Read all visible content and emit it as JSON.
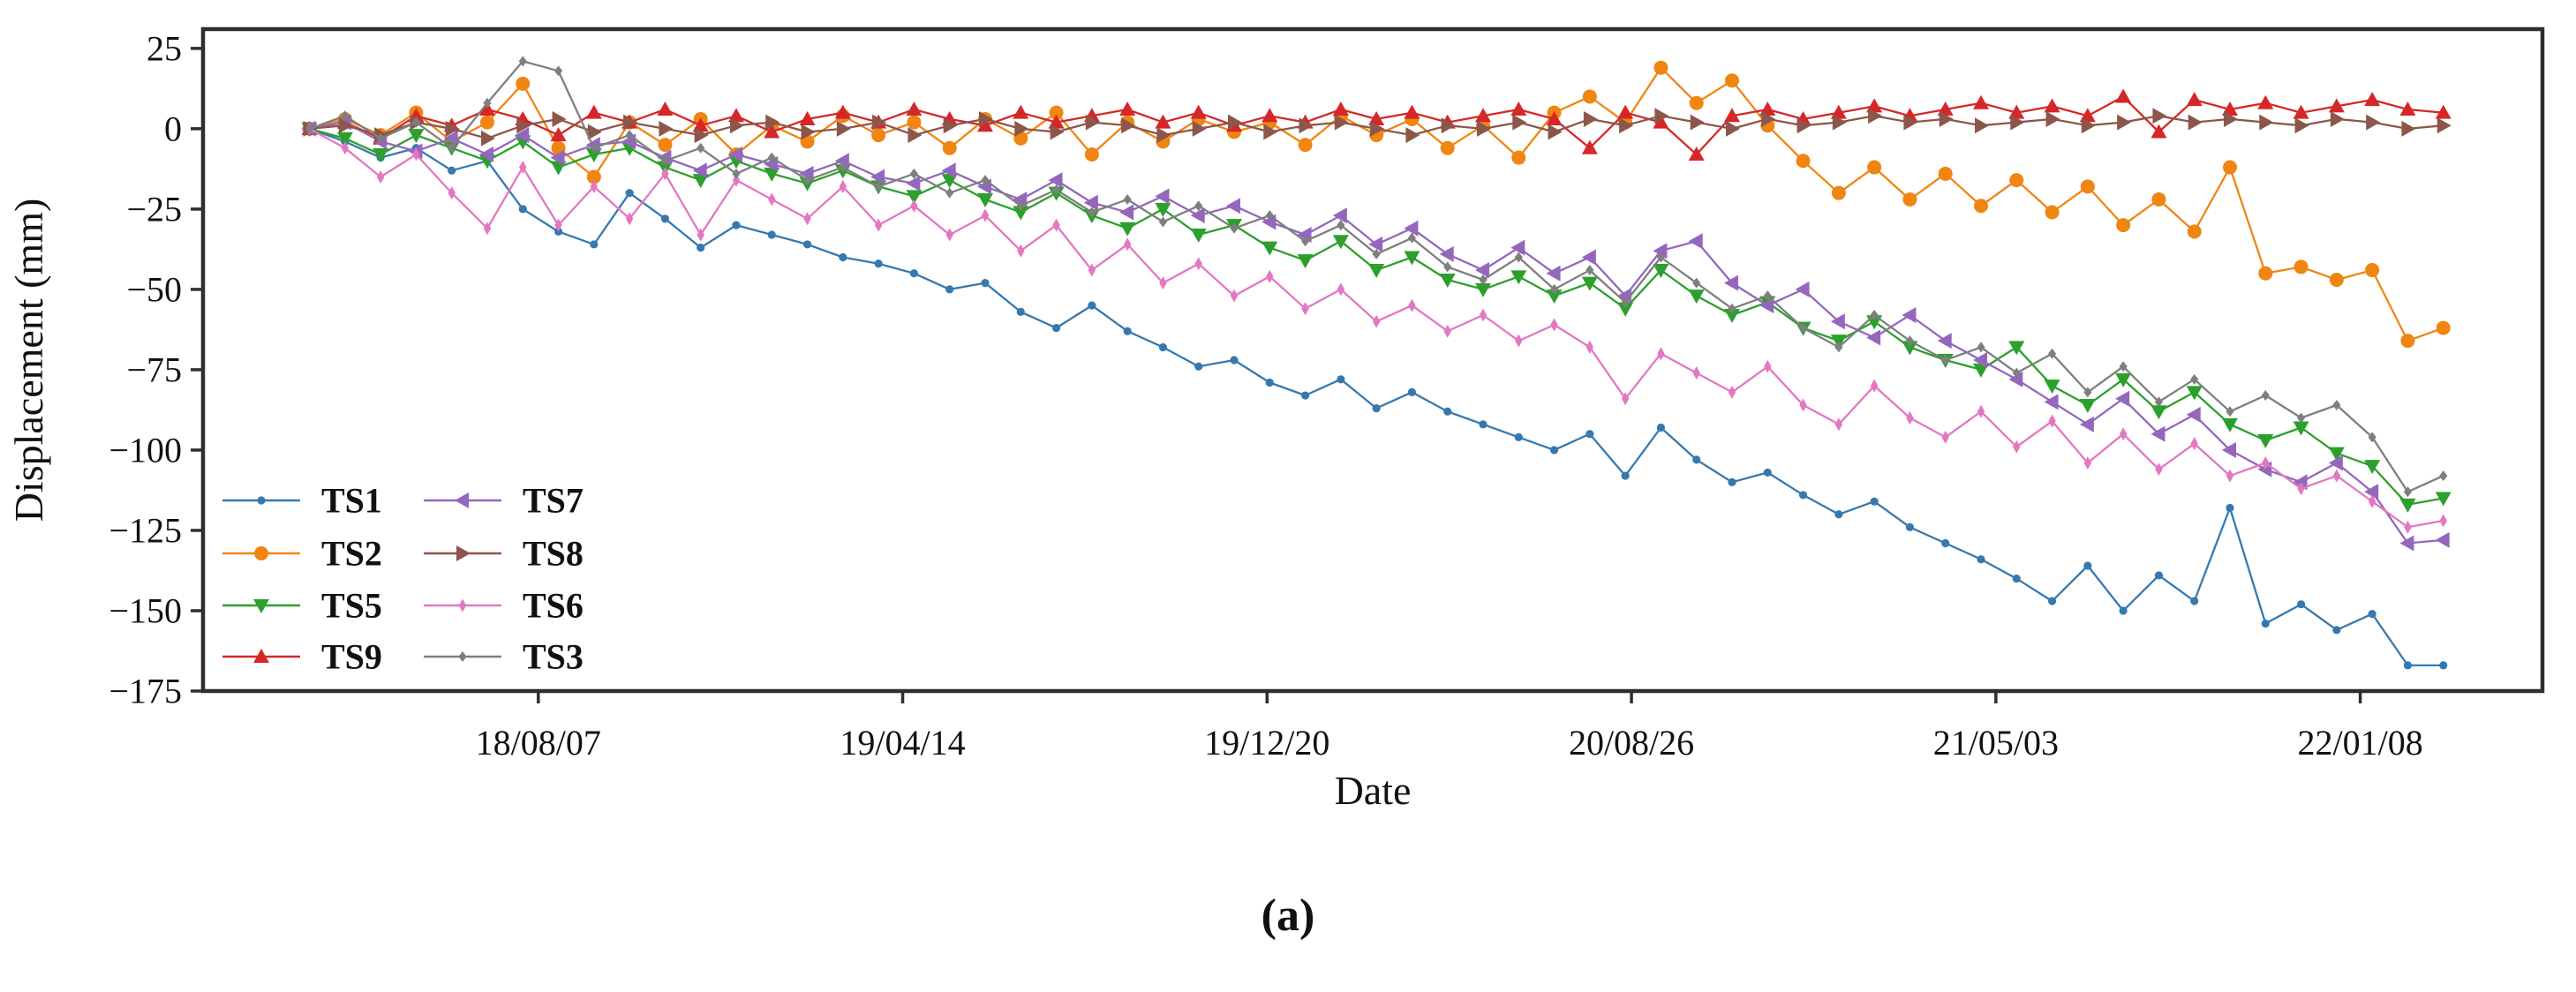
{
  "caption": "(a)",
  "chart_data": {
    "type": "line",
    "title": "",
    "xlabel": "Date",
    "ylabel": "Displacement (mm)",
    "legend_position": "lower-left-inside",
    "grid": false,
    "x_tick_labels": [
      "18/08/07",
      "19/04/14",
      "19/12/20",
      "20/08/26",
      "21/05/03",
      "22/01/08"
    ],
    "x_tick_days": [
      157,
      407,
      657,
      907,
      1157,
      1407
    ],
    "y_ticks": [
      25,
      0,
      -25,
      -50,
      -75,
      -100,
      -125,
      -150,
      -175
    ],
    "y_tick_labels": [
      "25",
      "0",
      "−25",
      "−50",
      "−75",
      "−100",
      "−125",
      "−150",
      "−175"
    ],
    "xlim_days": [
      -73,
      1532
    ],
    "ylim": [
      -175,
      31
    ],
    "sample_interval_days": 24.4,
    "x_start_day": 0,
    "axis_color": "#2e2e2e",
    "series": [
      {
        "name": "TS1",
        "color": "#3579b1",
        "marker": "circle-small",
        "values": [
          0,
          -4,
          -9,
          -6,
          -13,
          -10,
          -25,
          -32,
          -36,
          -20,
          -28,
          -37,
          -30,
          -33,
          -36,
          -40,
          -42,
          -45,
          -50,
          -48,
          -57,
          -62,
          -55,
          -63,
          -68,
          -74,
          -72,
          -79,
          -83,
          -78,
          -87,
          -82,
          -88,
          -92,
          -96,
          -100,
          -95,
          -108,
          -93,
          -103,
          -110,
          -107,
          -114,
          -120,
          -116,
          -124,
          -129,
          -134,
          -140,
          -147,
          -136,
          -150,
          -139,
          -147,
          -118,
          -154,
          -148,
          -156,
          -151,
          -167,
          -167
        ]
      },
      {
        "name": "TS2",
        "color": "#f08511",
        "marker": "circle",
        "values": [
          0,
          3,
          -2,
          5,
          -4,
          2,
          14,
          -6,
          -15,
          2,
          -5,
          3,
          -8,
          1,
          -4,
          4,
          -2,
          2,
          -6,
          3,
          -3,
          5,
          -8,
          2,
          -4,
          3,
          -1,
          2,
          -5,
          4,
          -2,
          3,
          -6,
          1,
          -9,
          5,
          10,
          2,
          19,
          8,
          15,
          1,
          -10,
          -20,
          -12,
          -22,
          -14,
          -24,
          -16,
          -26,
          -18,
          -30,
          -22,
          -32,
          -12,
          -45,
          -43,
          -47,
          -44,
          -66,
          -62
        ]
      },
      {
        "name": "TS5",
        "color": "#2ca02c",
        "marker": "triangle-down",
        "values": [
          0,
          -3,
          -8,
          -2,
          -6,
          -10,
          -4,
          -12,
          -8,
          -6,
          -12,
          -16,
          -10,
          -14,
          -17,
          -13,
          -18,
          -21,
          -16,
          -22,
          -26,
          -20,
          -27,
          -31,
          -25,
          -33,
          -30,
          -37,
          -41,
          -35,
          -44,
          -40,
          -47,
          -50,
          -46,
          -52,
          -48,
          -56,
          -44,
          -52,
          -58,
          -54,
          -62,
          -66,
          -60,
          -68,
          -72,
          -75,
          -68,
          -80,
          -86,
          -78,
          -88,
          -82,
          -92,
          -97,
          -93,
          -101,
          -105,
          -117,
          -115
        ]
      },
      {
        "name": "TS9",
        "color": "#d62728",
        "marker": "triangle-up",
        "values": [
          0,
          2,
          -3,
          4,
          1,
          6,
          3,
          -2,
          5,
          2,
          6,
          1,
          4,
          -1,
          3,
          5,
          2,
          6,
          3,
          1,
          5,
          2,
          4,
          6,
          2,
          5,
          1,
          4,
          2,
          6,
          3,
          5,
          2,
          4,
          6,
          3,
          -6,
          5,
          2,
          -8,
          4,
          6,
          3,
          5,
          7,
          4,
          6,
          8,
          5,
          7,
          4,
          10,
          -1,
          9,
          6,
          8,
          5,
          7,
          9,
          6,
          5
        ]
      },
      {
        "name": "TS7",
        "color": "#9467bd",
        "marker": "triangle-left",
        "values": [
          0,
          2,
          -4,
          -7,
          -3,
          -8,
          -2,
          -9,
          -5,
          -4,
          -9,
          -13,
          -8,
          -11,
          -14,
          -10,
          -15,
          -17,
          -13,
          -18,
          -22,
          -16,
          -23,
          -26,
          -21,
          -27,
          -24,
          -29,
          -33,
          -27,
          -36,
          -31,
          -39,
          -44,
          -37,
          -45,
          -40,
          -52,
          -38,
          -35,
          -48,
          -55,
          -50,
          -60,
          -65,
          -58,
          -66,
          -72,
          -78,
          -85,
          -92,
          -84,
          -95,
          -89,
          -100,
          -106,
          -110,
          -104,
          -113,
          -129,
          -128
        ]
      },
      {
        "name": "TS8",
        "color": "#8c564b",
        "marker": "triangle-right",
        "values": [
          0,
          1,
          -2,
          2,
          0,
          -3,
          1,
          3,
          -1,
          2,
          0,
          -2,
          1,
          2,
          -1,
          0,
          2,
          -2,
          1,
          3,
          0,
          -1,
          2,
          1,
          -2,
          0,
          2,
          -1,
          1,
          2,
          0,
          -2,
          1,
          0,
          2,
          -1,
          3,
          1,
          4,
          2,
          0,
          3,
          1,
          2,
          4,
          2,
          3,
          1,
          2,
          3,
          1,
          2,
          4,
          2,
          3,
          2,
          1,
          3,
          2,
          0,
          1
        ]
      },
      {
        "name": "TS6",
        "color": "#e377c2",
        "marker": "thin-diamond",
        "values": [
          0,
          -6,
          -15,
          -8,
          -20,
          -31,
          -12,
          -30,
          -18,
          -28,
          -14,
          -33,
          -16,
          -22,
          -28,
          -18,
          -30,
          -24,
          -33,
          -27,
          -38,
          -30,
          -44,
          -36,
          -48,
          -42,
          -52,
          -46,
          -56,
          -50,
          -60,
          -55,
          -63,
          -58,
          -66,
          -61,
          -68,
          -84,
          -70,
          -76,
          -82,
          -74,
          -86,
          -92,
          -80,
          -90,
          -96,
          -88,
          -99,
          -91,
          -104,
          -95,
          -106,
          -98,
          -108,
          -104,
          -112,
          -108,
          -116,
          -124,
          -122
        ]
      },
      {
        "name": "TS3",
        "color": "#7f7f7f",
        "marker": "diamond-small",
        "values": [
          0,
          4,
          -3,
          2,
          -6,
          8,
          21,
          18,
          -6,
          -2,
          -10,
          -6,
          -14,
          -9,
          -16,
          -12,
          -18,
          -14,
          -20,
          -16,
          -24,
          -19,
          -26,
          -22,
          -29,
          -24,
          -31,
          -27,
          -35,
          -30,
          -39,
          -34,
          -43,
          -47,
          -40,
          -50,
          -44,
          -54,
          -40,
          -48,
          -56,
          -52,
          -62,
          -68,
          -58,
          -66,
          -72,
          -68,
          -76,
          -70,
          -82,
          -74,
          -85,
          -78,
          -88,
          -83,
          -90,
          -86,
          -96,
          -113,
          -108
        ]
      }
    ]
  }
}
